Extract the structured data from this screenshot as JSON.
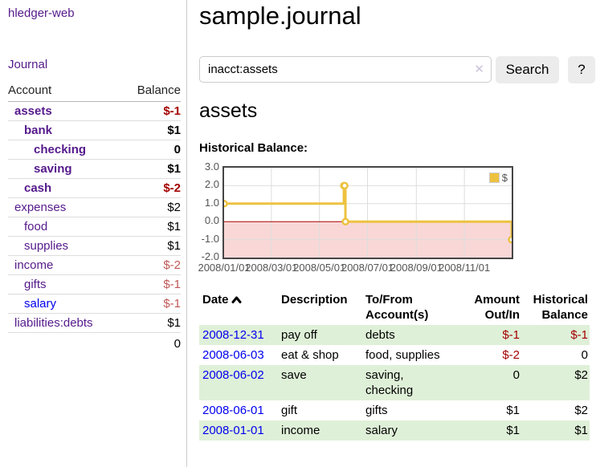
{
  "app": {
    "brand": "hledger-web",
    "nav_journal": "Journal"
  },
  "sidebar": {
    "headers": {
      "account": "Account",
      "balance": "Balance"
    },
    "accounts": [
      {
        "name": "assets",
        "balance": "$-1"
      },
      {
        "name": "bank",
        "balance": "$1"
      },
      {
        "name": "checking",
        "balance": "0"
      },
      {
        "name": "saving",
        "balance": "$1"
      },
      {
        "name": "cash",
        "balance": "$-2"
      },
      {
        "name": "expenses",
        "balance": "$2"
      },
      {
        "name": "food",
        "balance": "$1"
      },
      {
        "name": "supplies",
        "balance": "$1"
      },
      {
        "name": "income",
        "balance": "$-2"
      },
      {
        "name": "gifts",
        "balance": "$-1"
      },
      {
        "name": "salary",
        "balance": "$-1"
      },
      {
        "name": "liabilities:debts",
        "balance": "$1"
      }
    ],
    "total": "0"
  },
  "main": {
    "title": "sample.journal",
    "search": {
      "value": "inacct:assets",
      "clear_icon": "✕",
      "button": "Search",
      "help_button": "?"
    },
    "account_heading": "assets",
    "chart_label": "Historical Balance:"
  },
  "chart_data": {
    "type": "line",
    "title": "Historical Balance",
    "step": true,
    "x_type": "date",
    "xlim": [
      "2008-01-01",
      "2008-12-31"
    ],
    "ylim": [
      -2.0,
      3.0
    ],
    "y_ticks": [
      3.0,
      2.0,
      1.0,
      0.0,
      -1.0,
      -2.0
    ],
    "x_ticks": [
      {
        "date": "2008-01-01",
        "label": "2008/01/01"
      },
      {
        "date": "2008-03-01",
        "label": "2008/03/01"
      },
      {
        "date": "2008-05-01",
        "label": "2008/05/01"
      },
      {
        "date": "2008-07-01",
        "label": "2008/07/01"
      },
      {
        "date": "2008-09-01",
        "label": "2008/09/01"
      },
      {
        "date": "2008-11-01",
        "label": "2008/11/01"
      }
    ],
    "series": [
      {
        "name": "$",
        "color": "#edc240",
        "points": [
          [
            "2008-01-01",
            1
          ],
          [
            "2008-06-01",
            2
          ],
          [
            "2008-06-02",
            2
          ],
          [
            "2008-06-03",
            0
          ],
          [
            "2008-12-31",
            -1
          ]
        ]
      }
    ],
    "legend": {
      "label": "$",
      "color": "#edc240",
      "position": "top-right"
    },
    "grid": true,
    "zero_line_color": "#aa0000",
    "below_zero_fill": "#f9d7d7"
  },
  "register": {
    "headers": {
      "date": "Date",
      "description": "Description",
      "tofrom": "To/From Account(s)",
      "amount": "Amount Out/In",
      "balance": "Historical Balance"
    },
    "rows": [
      {
        "date": "2008-12-31",
        "description": "pay off",
        "accounts": "debts",
        "amount": "$-1",
        "balance": "$-1"
      },
      {
        "date": "2008-06-03",
        "description": "eat & shop",
        "accounts": "food, supplies",
        "amount": "$-2",
        "balance": "0"
      },
      {
        "date": "2008-06-02",
        "description": "save",
        "accounts": "saving, checking",
        "amount": "0",
        "balance": "$2"
      },
      {
        "date": "2008-06-01",
        "description": "gift",
        "accounts": "gifts",
        "amount": "$1",
        "balance": "$2"
      },
      {
        "date": "2008-01-01",
        "description": "income",
        "accounts": "salary",
        "amount": "$1",
        "balance": "$1"
      }
    ]
  },
  "colors": {
    "link_purple": "#551a8b",
    "link_blue": "#0000ee",
    "negative_strong": "#a40000",
    "negative_soft": "#c05757",
    "row_highlight_green": "#dff0d8",
    "series_gold": "#edc240"
  }
}
